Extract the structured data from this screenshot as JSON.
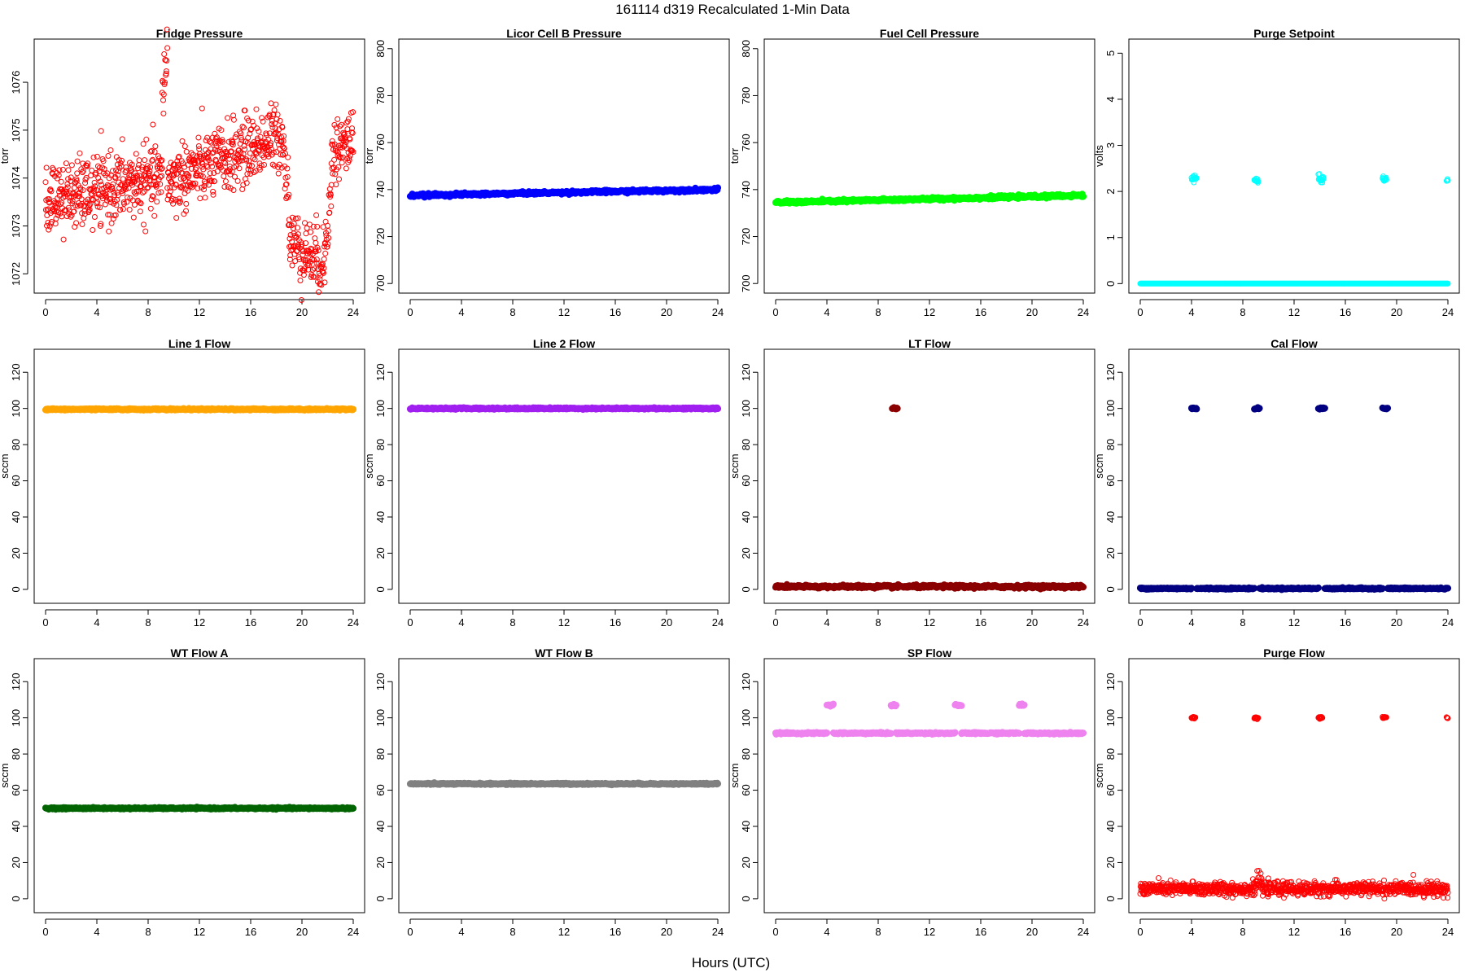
{
  "figure": {
    "title": "161114   d319   Recalculated 1-Min Data",
    "xlabel": "Hours (UTC)"
  },
  "chart_data": [
    {
      "type": "scatter",
      "title": "Fridge Pressure",
      "ylabel": "torr",
      "xlim": [
        0,
        24
      ],
      "ylim": [
        1071.7,
        1076.8
      ],
      "xticks": [
        0,
        4,
        8,
        12,
        16,
        20,
        24
      ],
      "yticks": [
        1072,
        1073,
        1074,
        1075,
        1076
      ],
      "color": "#ff0000",
      "marker": "open-circle",
      "segments": [
        {
          "x0": 0,
          "x1": 9.1,
          "y0": 1073.5,
          "y1": 1074.0,
          "noise": 0.35
        },
        {
          "x0": 9.1,
          "x1": 9.5,
          "y0": 1075.7,
          "y1": 1076.7,
          "noise": 0.3
        },
        {
          "x0": 9.5,
          "x1": 18.5,
          "y0": 1073.9,
          "y1": 1074.9,
          "noise": 0.35
        },
        {
          "x0": 18.5,
          "x1": 19.0,
          "y0": 1074.8,
          "y1": 1073.5,
          "noise": 0.3
        },
        {
          "x0": 19.0,
          "x1": 21.8,
          "y0": 1072.7,
          "y1": 1072.2,
          "noise": 0.35
        },
        {
          "x0": 21.8,
          "x1": 22.3,
          "y0": 1072.8,
          "y1": 1073.6,
          "noise": 0.3
        },
        {
          "x0": 22.3,
          "x1": 24,
          "y0": 1074.5,
          "y1": 1074.8,
          "noise": 0.35
        }
      ]
    },
    {
      "type": "scatter",
      "title": "Licor Cell B Pressure",
      "ylabel": "torr",
      "xlim": [
        0,
        24
      ],
      "ylim": [
        698,
        802
      ],
      "xticks": [
        0,
        4,
        8,
        12,
        16,
        20,
        24
      ],
      "yticks": [
        700,
        720,
        740,
        760,
        780,
        800
      ],
      "color": "#0000ff",
      "marker": "filled",
      "segments": [
        {
          "x0": 0,
          "x1": 24,
          "y0": 737.5,
          "y1": 740.0,
          "noise": 0.3
        }
      ]
    },
    {
      "type": "scatter",
      "title": "Fuel Cell Pressure",
      "ylabel": "torr",
      "xlim": [
        0,
        24
      ],
      "ylim": [
        698,
        802
      ],
      "xticks": [
        0,
        4,
        8,
        12,
        16,
        20,
        24
      ],
      "yticks": [
        700,
        720,
        740,
        760,
        780,
        800
      ],
      "color": "#00ff00",
      "marker": "filled",
      "segments": [
        {
          "x0": 0,
          "x1": 24,
          "y0": 734.5,
          "y1": 737.5,
          "noise": 0.3
        }
      ]
    },
    {
      "type": "scatter",
      "title": "Purge Setpoint",
      "ylabel": "volts",
      "xlim": [
        0,
        24
      ],
      "ylim": [
        -0.1,
        5.2
      ],
      "xticks": [
        0,
        4,
        8,
        12,
        16,
        20,
        24
      ],
      "yticks": [
        0,
        1,
        2,
        3,
        4,
        5
      ],
      "color": "#00ffff",
      "marker": "open-circle",
      "segments": [
        {
          "x0": 0,
          "x1": 24,
          "y0": 0,
          "y1": 0,
          "noise": 0
        },
        {
          "x0": 4.0,
          "x1": 4.4,
          "y0": 2.27,
          "y1": 2.27,
          "noise": 0.04
        },
        {
          "x0": 8.9,
          "x1": 9.2,
          "y0": 2.25,
          "y1": 2.25,
          "noise": 0.03
        },
        {
          "x0": 13.9,
          "x1": 14.3,
          "y0": 2.27,
          "y1": 2.27,
          "noise": 0.04
        },
        {
          "x0": 18.9,
          "x1": 19.2,
          "y0": 2.26,
          "y1": 2.26,
          "noise": 0.03
        },
        {
          "x0": 23.9,
          "x1": 24.0,
          "y0": 2.23,
          "y1": 2.23,
          "noise": 0.02
        }
      ]
    },
    {
      "type": "scatter",
      "title": "Line 1 Flow",
      "ylabel": "sccm",
      "xlim": [
        0,
        24
      ],
      "ylim": [
        -5,
        130
      ],
      "xticks": [
        0,
        4,
        8,
        12,
        16,
        20,
        24
      ],
      "yticks": [
        0,
        20,
        40,
        60,
        80,
        100,
        120
      ],
      "color": "#ffa500",
      "marker": "filled",
      "segments": [
        {
          "x0": 0,
          "x1": 24,
          "y0": 99.5,
          "y1": 99.5,
          "noise": 0.2
        }
      ]
    },
    {
      "type": "scatter",
      "title": "Line 2 Flow",
      "ylabel": "sccm",
      "xlim": [
        0,
        24
      ],
      "ylim": [
        -5,
        130
      ],
      "xticks": [
        0,
        4,
        8,
        12,
        16,
        20,
        24
      ],
      "yticks": [
        0,
        20,
        40,
        60,
        80,
        100,
        120
      ],
      "color": "#a020f0",
      "marker": "filled",
      "segments": [
        {
          "x0": 0,
          "x1": 24,
          "y0": 100,
          "y1": 100,
          "noise": 0.2
        }
      ]
    },
    {
      "type": "scatter",
      "title": "LT Flow",
      "ylabel": "sccm",
      "xlim": [
        0,
        24
      ],
      "ylim": [
        -5,
        130
      ],
      "xticks": [
        0,
        4,
        8,
        12,
        16,
        20,
        24
      ],
      "yticks": [
        0,
        20,
        40,
        60,
        80,
        100,
        120
      ],
      "color": "#8b0000",
      "marker": "filled",
      "segments": [
        {
          "x0": 0,
          "x1": 24,
          "y0": 1.5,
          "y1": 1.5,
          "noise": 0.4
        },
        {
          "x0": 9.1,
          "x1": 9.5,
          "y0": 100,
          "y1": 100,
          "noise": 0.3
        }
      ]
    },
    {
      "type": "scatter",
      "title": "Cal Flow",
      "ylabel": "sccm",
      "xlim": [
        0,
        24
      ],
      "ylim": [
        -5,
        130
      ],
      "xticks": [
        0,
        4,
        8,
        12,
        16,
        20,
        24
      ],
      "yticks": [
        0,
        20,
        40,
        60,
        80,
        100,
        120
      ],
      "color": "#000080",
      "marker": "filled",
      "segments": [
        {
          "x0": 0,
          "x1": 4.0,
          "y0": 0.5,
          "y1": 0.5,
          "noise": 0.2
        },
        {
          "x0": 4.4,
          "x1": 8.9,
          "y0": 0.5,
          "y1": 0.5,
          "noise": 0.2
        },
        {
          "x0": 9.3,
          "x1": 13.9,
          "y0": 0.5,
          "y1": 0.5,
          "noise": 0.2
        },
        {
          "x0": 14.4,
          "x1": 18.9,
          "y0": 0.5,
          "y1": 0.5,
          "noise": 0.2
        },
        {
          "x0": 19.3,
          "x1": 24,
          "y0": 0.5,
          "y1": 0.5,
          "noise": 0.2
        },
        {
          "x0": 4.0,
          "x1": 4.4,
          "y0": 100,
          "y1": 100,
          "noise": 0.2
        },
        {
          "x0": 8.9,
          "x1": 9.3,
          "y0": 100,
          "y1": 100,
          "noise": 0.2
        },
        {
          "x0": 13.9,
          "x1": 14.4,
          "y0": 100,
          "y1": 100,
          "noise": 0.2
        },
        {
          "x0": 18.9,
          "x1": 19.3,
          "y0": 100,
          "y1": 100,
          "noise": 0.2
        }
      ]
    },
    {
      "type": "scatter",
      "title": "WT Flow A",
      "ylabel": "sccm",
      "xlim": [
        0,
        24
      ],
      "ylim": [
        -5,
        130
      ],
      "xticks": [
        0,
        4,
        8,
        12,
        16,
        20,
        24
      ],
      "yticks": [
        0,
        20,
        40,
        60,
        80,
        100,
        120
      ],
      "color": "#006400",
      "marker": "filled",
      "segments": [
        {
          "x0": 0,
          "x1": 24,
          "y0": 50,
          "y1": 50,
          "noise": 0.2
        }
      ]
    },
    {
      "type": "scatter",
      "title": "WT Flow B",
      "ylabel": "",
      "xlim": [
        0,
        24
      ],
      "ylim": [
        -5,
        130
      ],
      "xticks": [
        0,
        4,
        8,
        12,
        16,
        20,
        24
      ],
      "yticks": [
        0,
        20,
        40,
        60,
        80,
        100,
        120
      ],
      "color": "#808080",
      "marker": "filled",
      "segments": [
        {
          "x0": 0,
          "x1": 24,
          "y0": 63.5,
          "y1": 63.5,
          "noise": 0.2
        }
      ]
    },
    {
      "type": "scatter",
      "title": "SP Flow",
      "ylabel": "sccm",
      "xlim": [
        0,
        24
      ],
      "ylim": [
        -5,
        130
      ],
      "xticks": [
        0,
        4,
        8,
        12,
        16,
        20,
        24
      ],
      "yticks": [
        0,
        20,
        40,
        60,
        80,
        100,
        120
      ],
      "color": "#ee82ee",
      "marker": "filled",
      "segments": [
        {
          "x0": 0,
          "x1": 4.0,
          "y0": 91.5,
          "y1": 91.5,
          "noise": 0.2
        },
        {
          "x0": 4.5,
          "x1": 9.0,
          "y0": 91.5,
          "y1": 91.5,
          "noise": 0.2
        },
        {
          "x0": 9.4,
          "x1": 14.0,
          "y0": 91.5,
          "y1": 91.5,
          "noise": 0.2
        },
        {
          "x0": 14.5,
          "x1": 19.0,
          "y0": 91.5,
          "y1": 91.5,
          "noise": 0.2
        },
        {
          "x0": 19.4,
          "x1": 24,
          "y0": 91.5,
          "y1": 91.5,
          "noise": 0.2
        },
        {
          "x0": 4.0,
          "x1": 4.5,
          "y0": 107,
          "y1": 107,
          "noise": 0.3
        },
        {
          "x0": 9.0,
          "x1": 9.4,
          "y0": 107,
          "y1": 106.5,
          "noise": 0.3
        },
        {
          "x0": 14.0,
          "x1": 14.5,
          "y0": 107,
          "y1": 107,
          "noise": 0.3
        },
        {
          "x0": 19.0,
          "x1": 19.4,
          "y0": 107,
          "y1": 107,
          "noise": 0.3
        }
      ]
    },
    {
      "type": "scatter",
      "title": "Purge Flow",
      "ylabel": "sccm",
      "xlim": [
        0,
        24
      ],
      "ylim": [
        -5,
        130
      ],
      "xticks": [
        0,
        4,
        8,
        12,
        16,
        20,
        24
      ],
      "yticks": [
        0,
        20,
        40,
        60,
        80,
        100,
        120
      ],
      "color": "#ff0000",
      "marker": "open-circle",
      "segments": [
        {
          "x0": 0,
          "x1": 9.0,
          "y0": 5.5,
          "y1": 5.5,
          "noise": 1.8
        },
        {
          "x0": 9.0,
          "x1": 9.5,
          "y0": 9,
          "y1": 9,
          "noise": 2.5
        },
        {
          "x0": 9.5,
          "x1": 24,
          "y0": 5.5,
          "y1": 5.5,
          "noise": 1.8
        },
        {
          "x0": 4.0,
          "x1": 4.3,
          "y0": 100,
          "y1": 100,
          "noise": 0.4
        },
        {
          "x0": 8.9,
          "x1": 9.2,
          "y0": 100,
          "y1": 100,
          "noise": 0.4
        },
        {
          "x0": 13.9,
          "x1": 14.2,
          "y0": 100,
          "y1": 100,
          "noise": 0.4
        },
        {
          "x0": 18.9,
          "x1": 19.2,
          "y0": 100,
          "y1": 100,
          "noise": 0.4
        },
        {
          "x0": 23.9,
          "x1": 24.0,
          "y0": 100,
          "y1": 100,
          "noise": 0.3
        }
      ]
    }
  ]
}
